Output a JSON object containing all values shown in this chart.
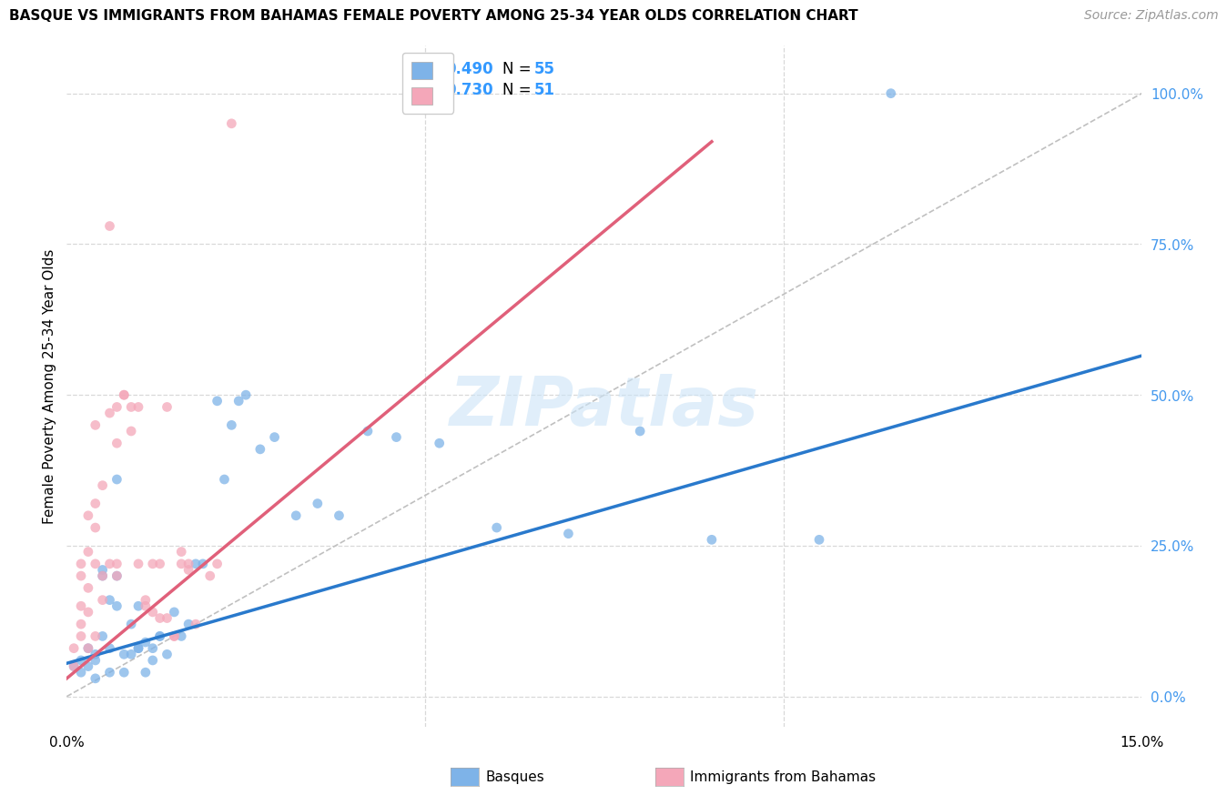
{
  "title": "BASQUE VS IMMIGRANTS FROM BAHAMAS FEMALE POVERTY AMONG 25-34 YEAR OLDS CORRELATION CHART",
  "source": "Source: ZipAtlas.com",
  "ylabel": "Female Poverty Among 25-34 Year Olds",
  "ylabel_right_ticks": [
    "100.0%",
    "75.0%",
    "50.0%",
    "25.0%",
    "0.0%"
  ],
  "ylabel_right_vals": [
    1.0,
    0.75,
    0.5,
    0.25,
    0.0
  ],
  "xlim": [
    0.0,
    0.15
  ],
  "ylim": [
    -0.05,
    1.08
  ],
  "basque_color": "#7eb3e8",
  "bahamas_color": "#f4a7b9",
  "basque_line_color": "#2979cc",
  "bahamas_line_color": "#e0607a",
  "legend_r_basque": "R = 0.490",
  "legend_n_basque": "N = 55",
  "legend_r_bahamas": "R = 0.730",
  "legend_n_bahamas": "N = 51",
  "basque_label": "Basques",
  "bahamas_label": "Immigrants from Bahamas",
  "basque_scatter": [
    [
      0.001,
      0.05
    ],
    [
      0.002,
      0.06
    ],
    [
      0.002,
      0.04
    ],
    [
      0.003,
      0.08
    ],
    [
      0.003,
      0.05
    ],
    [
      0.004,
      0.07
    ],
    [
      0.004,
      0.06
    ],
    [
      0.004,
      0.03
    ],
    [
      0.005,
      0.1
    ],
    [
      0.005,
      0.2
    ],
    [
      0.005,
      0.21
    ],
    [
      0.006,
      0.04
    ],
    [
      0.006,
      0.08
    ],
    [
      0.006,
      0.16
    ],
    [
      0.007,
      0.36
    ],
    [
      0.007,
      0.2
    ],
    [
      0.007,
      0.15
    ],
    [
      0.008,
      0.04
    ],
    [
      0.008,
      0.07
    ],
    [
      0.009,
      0.12
    ],
    [
      0.009,
      0.07
    ],
    [
      0.01,
      0.08
    ],
    [
      0.01,
      0.15
    ],
    [
      0.01,
      0.08
    ],
    [
      0.011,
      0.09
    ],
    [
      0.011,
      0.04
    ],
    [
      0.012,
      0.06
    ],
    [
      0.012,
      0.08
    ],
    [
      0.013,
      0.1
    ],
    [
      0.013,
      0.1
    ],
    [
      0.014,
      0.07
    ],
    [
      0.015,
      0.14
    ],
    [
      0.016,
      0.1
    ],
    [
      0.017,
      0.12
    ],
    [
      0.018,
      0.22
    ],
    [
      0.019,
      0.22
    ],
    [
      0.021,
      0.49
    ],
    [
      0.022,
      0.36
    ],
    [
      0.023,
      0.45
    ],
    [
      0.024,
      0.49
    ],
    [
      0.025,
      0.5
    ],
    [
      0.027,
      0.41
    ],
    [
      0.029,
      0.43
    ],
    [
      0.032,
      0.3
    ],
    [
      0.035,
      0.32
    ],
    [
      0.038,
      0.3
    ],
    [
      0.042,
      0.44
    ],
    [
      0.046,
      0.43
    ],
    [
      0.052,
      0.42
    ],
    [
      0.06,
      0.28
    ],
    [
      0.07,
      0.27
    ],
    [
      0.08,
      0.44
    ],
    [
      0.09,
      0.26
    ],
    [
      0.105,
      0.26
    ],
    [
      0.115,
      1.0
    ]
  ],
  "bahamas_scatter": [
    [
      0.001,
      0.05
    ],
    [
      0.001,
      0.08
    ],
    [
      0.002,
      0.1
    ],
    [
      0.002,
      0.15
    ],
    [
      0.002,
      0.2
    ],
    [
      0.002,
      0.22
    ],
    [
      0.002,
      0.12
    ],
    [
      0.003,
      0.18
    ],
    [
      0.003,
      0.24
    ],
    [
      0.003,
      0.3
    ],
    [
      0.003,
      0.08
    ],
    [
      0.003,
      0.14
    ],
    [
      0.004,
      0.22
    ],
    [
      0.004,
      0.28
    ],
    [
      0.004,
      0.1
    ],
    [
      0.004,
      0.32
    ],
    [
      0.004,
      0.45
    ],
    [
      0.005,
      0.16
    ],
    [
      0.005,
      0.35
    ],
    [
      0.005,
      0.2
    ],
    [
      0.006,
      0.47
    ],
    [
      0.006,
      0.78
    ],
    [
      0.006,
      0.22
    ],
    [
      0.007,
      0.48
    ],
    [
      0.007,
      0.22
    ],
    [
      0.007,
      0.42
    ],
    [
      0.007,
      0.2
    ],
    [
      0.008,
      0.5
    ],
    [
      0.008,
      0.5
    ],
    [
      0.009,
      0.48
    ],
    [
      0.009,
      0.44
    ],
    [
      0.01,
      0.22
    ],
    [
      0.01,
      0.48
    ],
    [
      0.011,
      0.15
    ],
    [
      0.011,
      0.16
    ],
    [
      0.012,
      0.22
    ],
    [
      0.012,
      0.14
    ],
    [
      0.013,
      0.13
    ],
    [
      0.013,
      0.22
    ],
    [
      0.014,
      0.13
    ],
    [
      0.014,
      0.48
    ],
    [
      0.015,
      0.1
    ],
    [
      0.015,
      0.1
    ],
    [
      0.016,
      0.24
    ],
    [
      0.016,
      0.22
    ],
    [
      0.017,
      0.22
    ],
    [
      0.017,
      0.21
    ],
    [
      0.018,
      0.12
    ],
    [
      0.02,
      0.2
    ],
    [
      0.021,
      0.22
    ],
    [
      0.023,
      0.95
    ]
  ],
  "basque_trendline": [
    [
      0.0,
      0.055
    ],
    [
      0.15,
      0.565
    ]
  ],
  "bahamas_trendline": [
    [
      0.0,
      0.03
    ],
    [
      0.09,
      0.92
    ]
  ],
  "diagonal_line": [
    [
      0.0,
      0.0
    ],
    [
      0.15,
      1.0
    ]
  ],
  "watermark": "ZIPatlas",
  "grid_color": "#d8d8d8",
  "background_color": "#ffffff"
}
